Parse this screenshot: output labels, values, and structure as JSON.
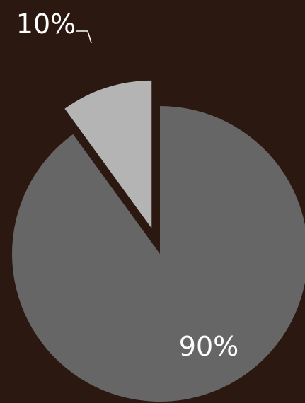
{
  "chart_data": {
    "type": "pie",
    "title": "",
    "exploded": [
      false,
      true
    ],
    "slices": [
      {
        "label": "90%",
        "value": 90,
        "color": "#666666"
      },
      {
        "label": "10%",
        "value": 10,
        "color": "#b4b4b4"
      }
    ],
    "background": "#2b1810",
    "label_color": "#ffffff",
    "leader_line_color": "#ffffff"
  }
}
